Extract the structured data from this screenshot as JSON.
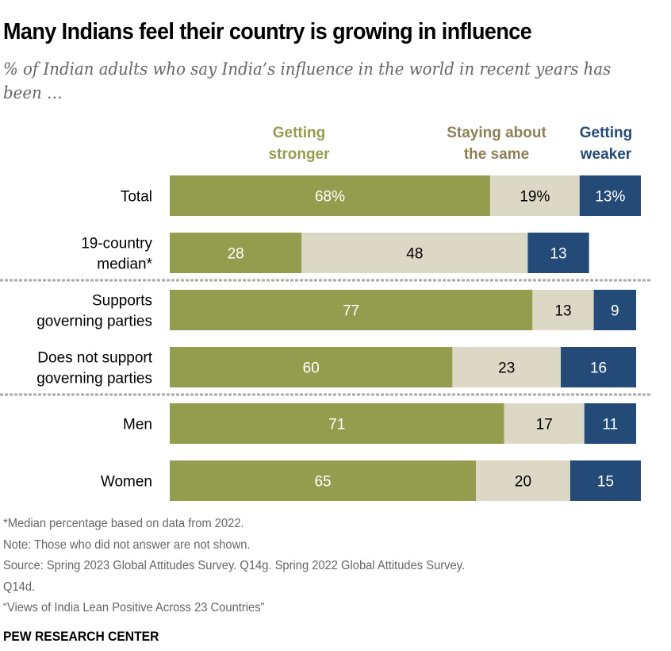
{
  "chart_data": {
    "type": "bar",
    "orientation": "horizontal",
    "stacked": true,
    "title": "Many Indians feel their country is growing in influence",
    "subtitle": "% of Indian adults who say India’s influence in the world in recent years has been …",
    "xlabel": "",
    "ylabel": "",
    "xlim": [
      0,
      100
    ],
    "grid": false,
    "legend_position": "top",
    "series": [
      {
        "name": "Getting stronger",
        "legend_lines": [
          "Getting",
          "stronger"
        ],
        "color": "#949d4e",
        "label_color": "#ffffff",
        "values": [
          68,
          28,
          77,
          60,
          71,
          65
        ]
      },
      {
        "name": "Staying about the same",
        "legend_lines": [
          "Staying about",
          "the same"
        ],
        "color": "#dbd8c6",
        "label_color": "#000000",
        "legend_color": "#8e7f55",
        "values": [
          19,
          48,
          13,
          23,
          17,
          20
        ]
      },
      {
        "name": "Getting weaker",
        "legend_lines": [
          "Getting",
          "weaker"
        ],
        "color": "#244a78",
        "label_color": "#ffffff",
        "legend_color": "#244a78",
        "values": [
          13,
          13,
          9,
          16,
          11,
          15
        ]
      }
    ],
    "categories": [
      {
        "lines": [
          "Total"
        ],
        "percent_sign": true
      },
      {
        "lines": [
          "19-country",
          "median*"
        ],
        "percent_sign": false
      },
      {
        "lines": [
          "Supports",
          "governing parties"
        ],
        "percent_sign": false,
        "separator_before": true
      },
      {
        "lines": [
          "Does not support",
          "governing parties"
        ],
        "percent_sign": false
      },
      {
        "lines": [
          "Men"
        ],
        "percent_sign": false,
        "separator_before": true
      },
      {
        "lines": [
          "Women"
        ],
        "percent_sign": false
      }
    ],
    "legend_stronger_color": "#949d4e"
  },
  "notes": [
    "*Median percentage based on data from 2022.",
    "Note: Those who did not answer are not shown.",
    "Source: Spring 2023 Global Attitudes Survey. Q14g. Spring 2022 Global Attitudes Survey.",
    "Q14d.",
    "“Views of India Lean Positive Across 23 Countries”"
  ],
  "brand": "PEW RESEARCH CENTER"
}
